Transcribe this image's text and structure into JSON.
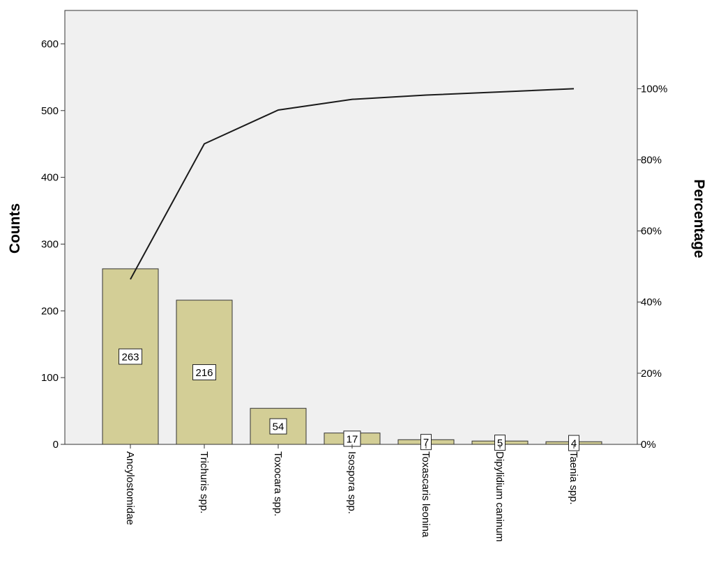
{
  "chart_data": {
    "type": "bar",
    "subtype": "pareto",
    "categories": [
      "Ancylostomidae",
      "Trichuris spp.",
      "Toxocara spp.",
      "Isospora spp.",
      "Toxascaris leonina",
      "Dipylidium caninum",
      "Taenia spp."
    ],
    "values": [
      263,
      216,
      54,
      17,
      7,
      5,
      4
    ],
    "data_labels": [
      "263",
      "216",
      "54",
      "17",
      "7",
      "5",
      "4"
    ],
    "cumulative_percent": [
      46.4,
      84.5,
      94.0,
      97.0,
      98.2,
      99.1,
      100.0
    ],
    "ylabel": "Counts",
    "y2label": "Percentage",
    "ylim": [
      0,
      650
    ],
    "y2lim": [
      0,
      122
    ],
    "yticks": [
      0,
      100,
      200,
      300,
      400,
      500,
      600
    ],
    "ytick_labels": [
      "0",
      "100",
      "200",
      "300",
      "400",
      "500",
      "600"
    ],
    "y2ticks": [
      0,
      20,
      40,
      60,
      80,
      100
    ],
    "y2tick_labels": [
      "0%",
      "20%",
      "40%",
      "60%",
      "80%",
      "100%"
    ],
    "grid": false,
    "colors": {
      "bar_fill": "#d3ce96",
      "bar_stroke": "#333333",
      "plot_background": "#f0f0f0",
      "line": "#1a1a1a"
    }
  }
}
